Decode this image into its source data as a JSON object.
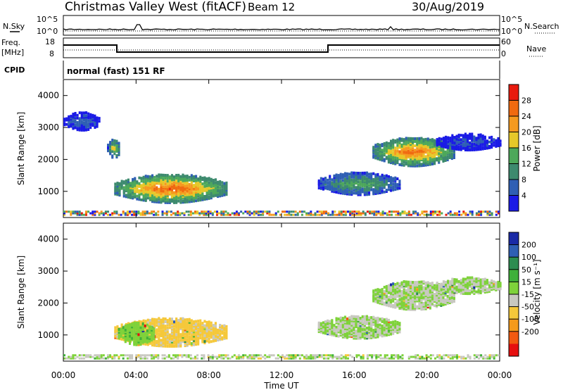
{
  "header": {
    "title": "Christmas Valley West (fitACF)",
    "beam": "Beam 12",
    "date": "30/Aug/2019"
  },
  "noise_panel": {
    "left_label": "N.Sky",
    "right_label": "N.Search",
    "left_top_tick": "10^5",
    "left_bottom_tick": "10^0",
    "right_top_tick": "10^5",
    "right_bottom_tick": "10^0"
  },
  "freq_panel": {
    "left_label_line1": "Freq.",
    "left_label_line2": "[MHz]",
    "left_top_tick": "18",
    "left_bottom_tick": "8",
    "right_label": "Nave",
    "right_top_tick": "60",
    "right_bottom_tick": "0"
  },
  "cpid_panel": {
    "label": "CPID",
    "program": "normal (fast) 151 RF"
  },
  "colors": {
    "power_scale": [
      "#1a1ae6",
      "#2f5fb4",
      "#3d8a6e",
      "#4da85a",
      "#e6c829",
      "#f59a1f",
      "#f06a10",
      "#e81a0e"
    ],
    "velocity_scale": [
      "#e61010",
      "#f25a10",
      "#f59a1a",
      "#f5c83a",
      "#c8c8c0",
      "#7ed23a",
      "#3fb03a",
      "#2d8c50",
      "#2f5fb4",
      "#1a2aa6"
    ]
  },
  "chart_data": [
    {
      "type": "heatmap",
      "name": "power",
      "xlabel": "",
      "ylabel": "Slant Range [km]",
      "x_ticks": [
        "00:00",
        "04:00",
        "08:00",
        "12:00",
        "16:00",
        "20:00",
        "00:00"
      ],
      "y_ticks": [
        "1000",
        "2000",
        "3000",
        "4000"
      ],
      "ylim": [
        180,
        4500
      ],
      "colorbar_label": "Power [dB]",
      "colorbar_ticks": [
        "4",
        "8",
        "12",
        "16",
        "20",
        "24",
        "28"
      ],
      "color_range": [
        0,
        32
      ],
      "regions": [
        {
          "t_start": 2.8,
          "t_end": 9.0,
          "r_center": 1050,
          "r_halfwidth": 450,
          "peak": 27
        },
        {
          "t_start": 0.0,
          "t_end": 2.0,
          "r_center": 3150,
          "r_halfwidth": 280,
          "peak": 6
        },
        {
          "t_start": 2.4,
          "t_end": 3.1,
          "r_center": 2300,
          "r_halfwidth": 300,
          "peak": 18
        },
        {
          "t_start": 14.0,
          "t_end": 18.5,
          "r_center": 1200,
          "r_halfwidth": 350,
          "peak": 14
        },
        {
          "t_start": 17.0,
          "t_end": 21.5,
          "r_center": 2200,
          "r_halfwidth": 450,
          "peak": 26
        },
        {
          "t_start": 20.5,
          "t_end": 24.0,
          "r_center": 2500,
          "r_halfwidth": 250,
          "peak": 5
        }
      ]
    },
    {
      "type": "heatmap",
      "name": "velocity",
      "xlabel": "Time UT",
      "ylabel": "Slant Range [km]",
      "x_ticks": [
        "00:00",
        "04:00",
        "08:00",
        "12:00",
        "16:00",
        "20:00",
        "00:00"
      ],
      "y_ticks": [
        "1000",
        "2000",
        "3000",
        "4000"
      ],
      "ylim": [
        180,
        4500
      ],
      "colorbar_label": "Velocity [m s⁻¹]",
      "colorbar_ticks": [
        "200",
        "100",
        "50",
        "15",
        "-15",
        "-50",
        "-100",
        "-200"
      ],
      "color_range": [
        -250,
        250
      ],
      "regions": [
        {
          "t_start": 2.8,
          "t_end": 9.0,
          "r_center": 1050,
          "r_halfwidth": 450,
          "value": -60
        },
        {
          "t_start": 3.0,
          "t_end": 5.0,
          "r_center": 1000,
          "r_halfwidth": 350,
          "value": 40
        },
        {
          "t_start": 14.0,
          "t_end": 18.5,
          "r_center": 1200,
          "r_halfwidth": 350,
          "value": 0
        },
        {
          "t_start": 17.0,
          "t_end": 21.5,
          "r_center": 2200,
          "r_halfwidth": 450,
          "value": 0
        },
        {
          "t_start": 20.5,
          "t_end": 24.0,
          "r_center": 2500,
          "r_halfwidth": 250,
          "value": 0
        }
      ]
    }
  ]
}
